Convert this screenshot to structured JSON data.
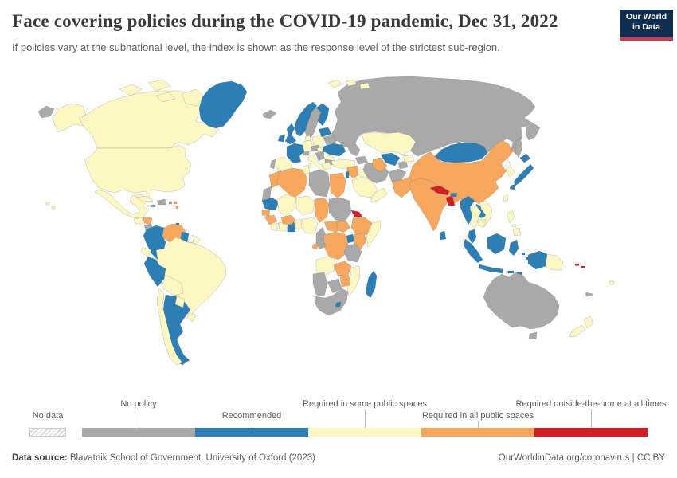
{
  "header": {
    "title": "Face covering policies during the COVID-19 pandemic, Dec 31, 2022",
    "subtitle": "If policies vary at the subnational level, the index is shown as the response level of the strictest sub-region.",
    "logo_line1": "Our World",
    "logo_line2": "in Data",
    "logo_bg": "#0f2d4e",
    "logo_stripe": "#d0394b"
  },
  "legend": {
    "no_data_label": "No data",
    "categories": [
      {
        "key": "no_policy",
        "label": "No policy",
        "color": "#a9a9a9",
        "row": "top"
      },
      {
        "key": "recommended",
        "label": "Recommended",
        "color": "#2e7eb6",
        "row": "bottom"
      },
      {
        "key": "required_some",
        "label": "Required in some public spaces",
        "color": "#fdf7c3",
        "row": "top"
      },
      {
        "key": "required_all",
        "label": "Required in all public spaces",
        "color": "#f8a85e",
        "row": "bottom"
      },
      {
        "key": "required_outside",
        "label": "Required outside-the-home at all times",
        "color": "#d21f26",
        "row": "top"
      }
    ]
  },
  "footer": {
    "source_label": "Data source:",
    "source_text": " Blavatnik School of Government, University of Oxford (2023)",
    "credit": "OurWorldinData.org/coronavirus | CC BY"
  },
  "chart_data": {
    "type": "heatmap",
    "title": "Face covering policies during the COVID-19 pandemic, Dec 31, 2022",
    "legend_position": "bottom",
    "categories": [
      "No data",
      "No policy",
      "Recommended",
      "Required in some public spaces",
      "Required in all public spaces",
      "Required outside-the-home at all times"
    ]
  },
  "map": {
    "regions": {
      "russia": "no_policy",
      "chukotka": "no_policy",
      "sakhalin": "no_policy",
      "alaska": "required_some",
      "canada": "required_some",
      "canada_islands": "required_some",
      "usa": "required_some",
      "mexico": "required_some",
      "greenland": "recommended",
      "iceland": "no_policy",
      "guatemala": "required_some",
      "honduras": "required_all",
      "nicaragua": "no_policy",
      "costa_rica_panama": "required_some",
      "cuba": "required_some",
      "jamaica": "no_policy",
      "hispaniola": "no_policy",
      "puerto_rico": "no_policy",
      "antilles": "required_all",
      "trinidad": "recommended",
      "hawaii": "required_some",
      "colombia": "recommended",
      "venezuela": "required_all",
      "guyana": "recommended",
      "suriname": "no_data",
      "french_guiana": "required_some",
      "ecuador": "required_some",
      "brazil": "required_some",
      "peru": "recommended",
      "bolivia": "required_some",
      "argentina": "recommended",
      "chile": "required_some",
      "paraguay": "required_some",
      "uruguay": "required_some",
      "norway": "recommended",
      "sweden": "no_policy",
      "finland": "recommended",
      "denmark": "required_some",
      "uk": "recommended",
      "ireland": "recommended",
      "germany": "required_some",
      "france": "recommended",
      "spain": "required_some",
      "portugal": "no_policy",
      "switzerland": "no_policy",
      "italy": "required_some",
      "poland": "required_some",
      "czech_austria": "no_policy",
      "hungary": "required_some",
      "balkans": "no_policy",
      "baltics": "recommended",
      "belarus": "no_policy",
      "ukraine": "recommended",
      "romania": "required_some",
      "bulgaria": "no_policy",
      "greece": "required_some",
      "turkey": "required_some",
      "caucasus": "no_policy",
      "syria": "required_all",
      "israel_lebanon": "recommended",
      "iraq": "required_some",
      "saudi_arabia": "required_some",
      "yemen_oman": "required_some",
      "iran": "no_policy",
      "afghanistan": "no_policy",
      "pakistan": "required_all",
      "tajikistan": "no_policy",
      "kyrgyzstan": "required_some",
      "uzbekistan": "recommended",
      "turkmenistan": "required_all",
      "kazakhstan": "required_some",
      "morocco": "required_all",
      "western_sahara": "no_policy",
      "algeria": "required_all",
      "tunisia": "required_some",
      "libya": "no_policy",
      "egypt": "required_all",
      "mauritania": "recommended",
      "mali": "required_some",
      "niger": "required_some",
      "chad": "required_all",
      "sudan": "no_policy",
      "eritrea": "required_outside",
      "ethiopia": "required_all",
      "somalia": "required_some",
      "senegal": "required_all",
      "guinea": "required_all",
      "sierra_liberia": "required_some",
      "ivory_coast": "required_some",
      "ghana": "recommended",
      "togo_benin": "required_some",
      "burkina_faso": "required_all",
      "nigeria": "required_some",
      "cameroon": "no_policy",
      "car": "required_all",
      "south_sudan": "required_all",
      "drc": "required_all",
      "congo": "no_policy",
      "gabon": "required_all",
      "uganda": "recommended",
      "kenya": "required_all",
      "tanzania": "no_policy",
      "angola": "required_some",
      "zambia": "required_all",
      "mozambique": "required_some",
      "zimbabwe": "required_all",
      "namibia": "no_policy",
      "botswana": "no_policy",
      "south_africa": "no_policy",
      "lesotho": "recommended",
      "madagascar": "recommended",
      "svalbard": "required_some",
      "india": "required_all",
      "nepal": "required_outside",
      "bhutan": "recommended",
      "bangladesh": "required_outside",
      "sri_lanka": "recommended",
      "china": "required_all",
      "mongolia": "recommended",
      "north_korea": "no_data",
      "south_korea": "required_some",
      "japan": "recommended",
      "taiwan": "required_some",
      "myanmar": "recommended",
      "thailand": "required_some",
      "laos": "recommended",
      "vietnam": "required_some",
      "cambodia": "required_some",
      "malaysia": "recommended",
      "indonesia": "recommended",
      "philippines": "required_some",
      "png": "required_some",
      "australia": "no_policy",
      "new_caledonia": "no_policy",
      "new_zealand": "required_some",
      "fiji": "required_some",
      "solomon": "required_outside"
    }
  }
}
